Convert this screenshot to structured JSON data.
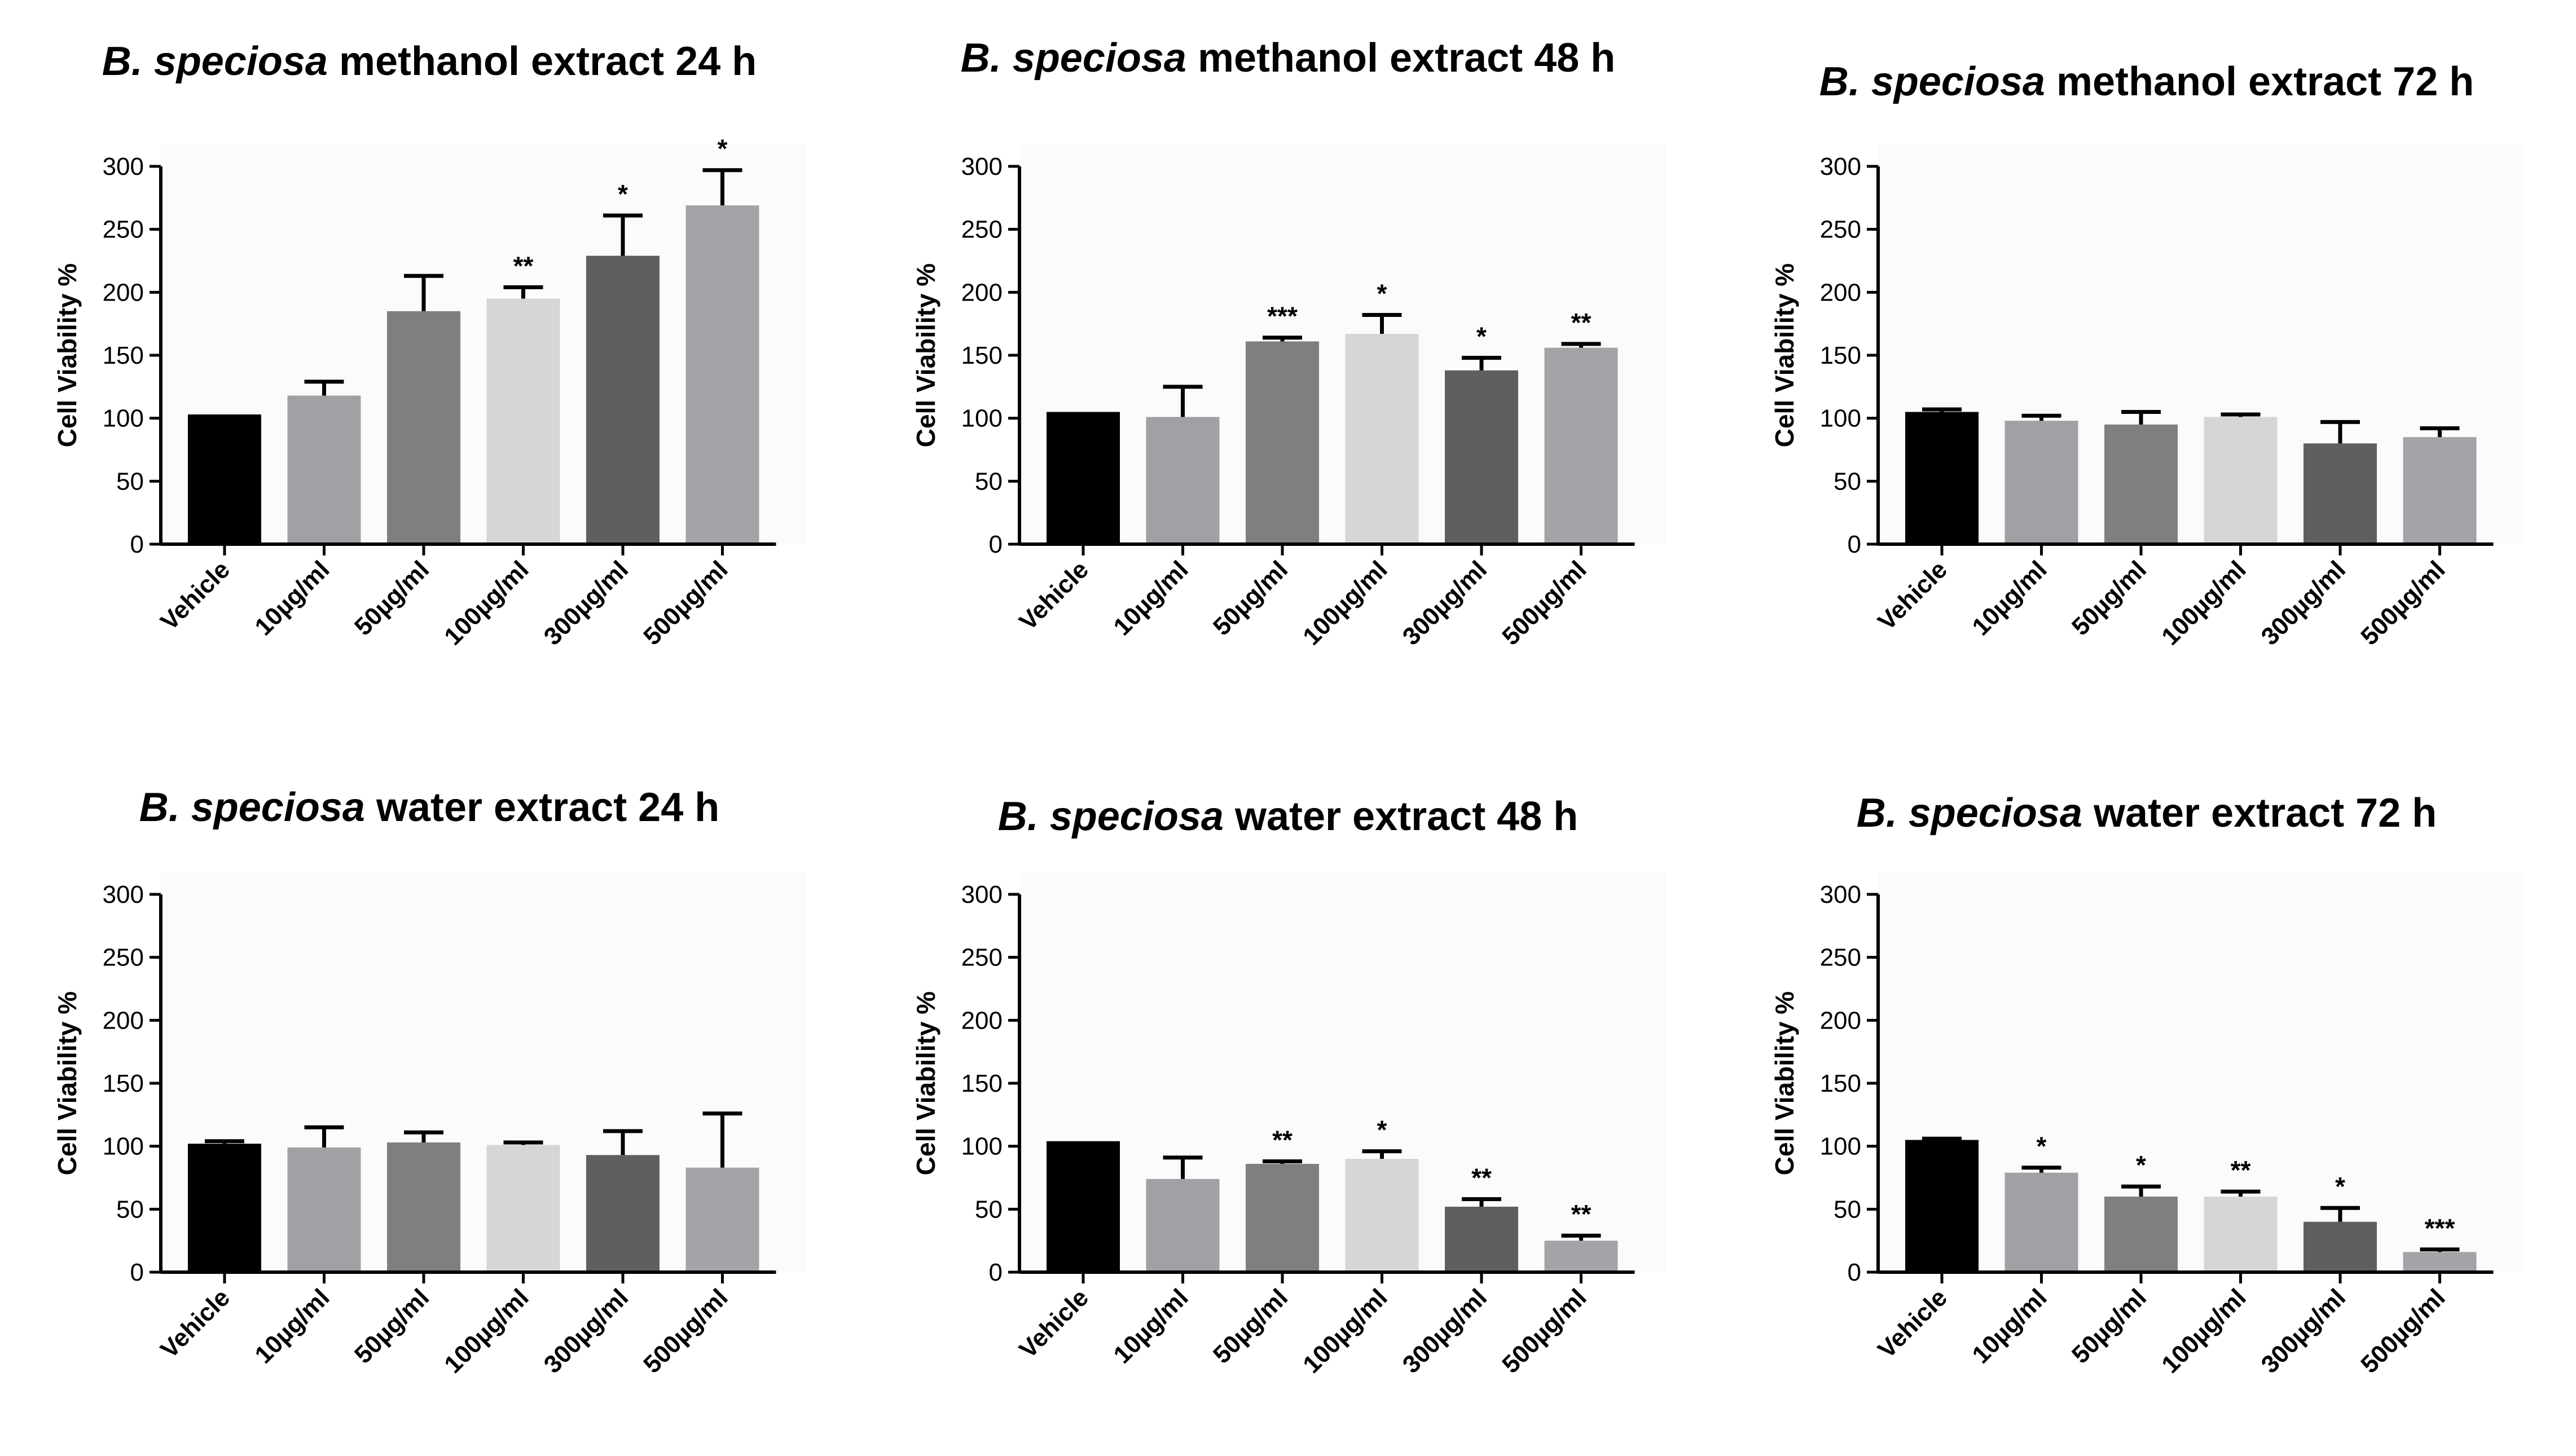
{
  "chart_data": [
    {
      "type": "bar",
      "title": "B. speciosa methanol extract 24 h",
      "title_species": "B. speciosa",
      "title_rest": "methanol extract 24 h",
      "ylabel": "Cell Viability %",
      "ylim": [
        0,
        300
      ],
      "yticks": [
        0,
        50,
        100,
        150,
        200,
        250,
        300
      ],
      "categories": [
        "Vehicle",
        "10µg/ml",
        "50µg/ml",
        "100µg/ml",
        "300µg/ml",
        "500µg/ml"
      ],
      "values": [
        103,
        118,
        185,
        195,
        229,
        269
      ],
      "errors": [
        0,
        11,
        28,
        9,
        32,
        28
      ],
      "significance": [
        "",
        "",
        "",
        "**",
        "*",
        "*"
      ]
    },
    {
      "type": "bar",
      "title": "B. speciosa methanol extract 48 h",
      "title_species": "B. speciosa",
      "title_rest": "methanol extract 48 h",
      "ylabel": "Cell Viability %",
      "ylim": [
        0,
        300
      ],
      "yticks": [
        0,
        50,
        100,
        150,
        200,
        250,
        300
      ],
      "categories": [
        "Vehicle",
        "10µg/ml",
        "50µg/ml",
        "100µg/ml",
        "300µg/ml",
        "500µg/ml"
      ],
      "values": [
        105,
        101,
        161,
        167,
        138,
        156
      ],
      "errors": [
        0,
        24,
        3,
        15,
        10,
        3
      ],
      "significance": [
        "",
        "",
        "***",
        "*",
        "*",
        "**"
      ]
    },
    {
      "type": "bar",
      "title": "B. speciosa methanol extract 72 h",
      "title_species": "B. speciosa",
      "title_rest": "methanol extract 72 h",
      "ylabel": "Cell Viability %",
      "ylim": [
        0,
        300
      ],
      "yticks": [
        0,
        50,
        100,
        150,
        200,
        250,
        300
      ],
      "categories": [
        "Vehicle",
        "10µg/ml",
        "50µg/ml",
        "100µg/ml",
        "300µg/ml",
        "500µg/ml"
      ],
      "values": [
        105,
        98,
        95,
        101,
        80,
        85
      ],
      "errors": [
        2,
        4,
        10,
        2,
        17,
        7
      ],
      "significance": [
        "",
        "",
        "",
        "",
        "",
        ""
      ]
    },
    {
      "type": "bar",
      "title": "B. speciosa water extract 24 h",
      "title_species": "B. speciosa",
      "title_rest": "water extract 24 h",
      "ylabel": "Cell Viability %",
      "ylim": [
        0,
        300
      ],
      "yticks": [
        0,
        50,
        100,
        150,
        200,
        250,
        300
      ],
      "categories": [
        "Vehicle",
        "10µg/ml",
        "50µg/ml",
        "100µg/ml",
        "300µg/ml",
        "500µg/ml"
      ],
      "values": [
        102,
        99,
        103,
        101,
        93,
        83
      ],
      "errors": [
        2,
        16,
        8,
        2,
        19,
        43
      ],
      "significance": [
        "",
        "",
        "",
        "",
        "",
        ""
      ]
    },
    {
      "type": "bar",
      "title": "B. speciosa water extract 48 h",
      "title_species": "B. speciosa",
      "title_rest": "water extract 48 h",
      "ylabel": "Cell Viability %",
      "ylim": [
        0,
        300
      ],
      "yticks": [
        0,
        50,
        100,
        150,
        200,
        250,
        300
      ],
      "categories": [
        "Vehicle",
        "10µg/ml",
        "50µg/ml",
        "100µg/ml",
        "300µg/ml",
        "500µg/ml"
      ],
      "values": [
        104,
        74,
        86,
        90,
        52,
        25
      ],
      "errors": [
        0,
        17,
        2,
        6,
        6,
        4
      ],
      "significance": [
        "",
        "",
        "**",
        "*",
        "**",
        "**"
      ]
    },
    {
      "type": "bar",
      "title": "B. speciosa water extract 72 h",
      "title_species": "B. speciosa",
      "title_rest": "water extract 72 h",
      "ylabel": "Cell Viability %",
      "ylim": [
        0,
        300
      ],
      "yticks": [
        0,
        50,
        100,
        150,
        200,
        250,
        300
      ],
      "categories": [
        "Vehicle",
        "10µg/ml",
        "50µg/ml",
        "100µg/ml",
        "300µg/ml",
        "500µg/ml"
      ],
      "values": [
        105,
        79,
        60,
        60,
        40,
        16
      ],
      "errors": [
        1,
        4,
        8,
        4,
        11,
        2
      ],
      "significance": [
        "",
        "*",
        "*",
        "**",
        "*",
        "***"
      ]
    }
  ],
  "colors": {
    "bars": [
      "#000000",
      "#a0a1a5",
      "#7f7f7f",
      "#d6d6d6",
      "#5f5f5f",
      "#a3a4a7"
    ],
    "axis": "#000000",
    "plot_background": "#fbfbfb"
  }
}
